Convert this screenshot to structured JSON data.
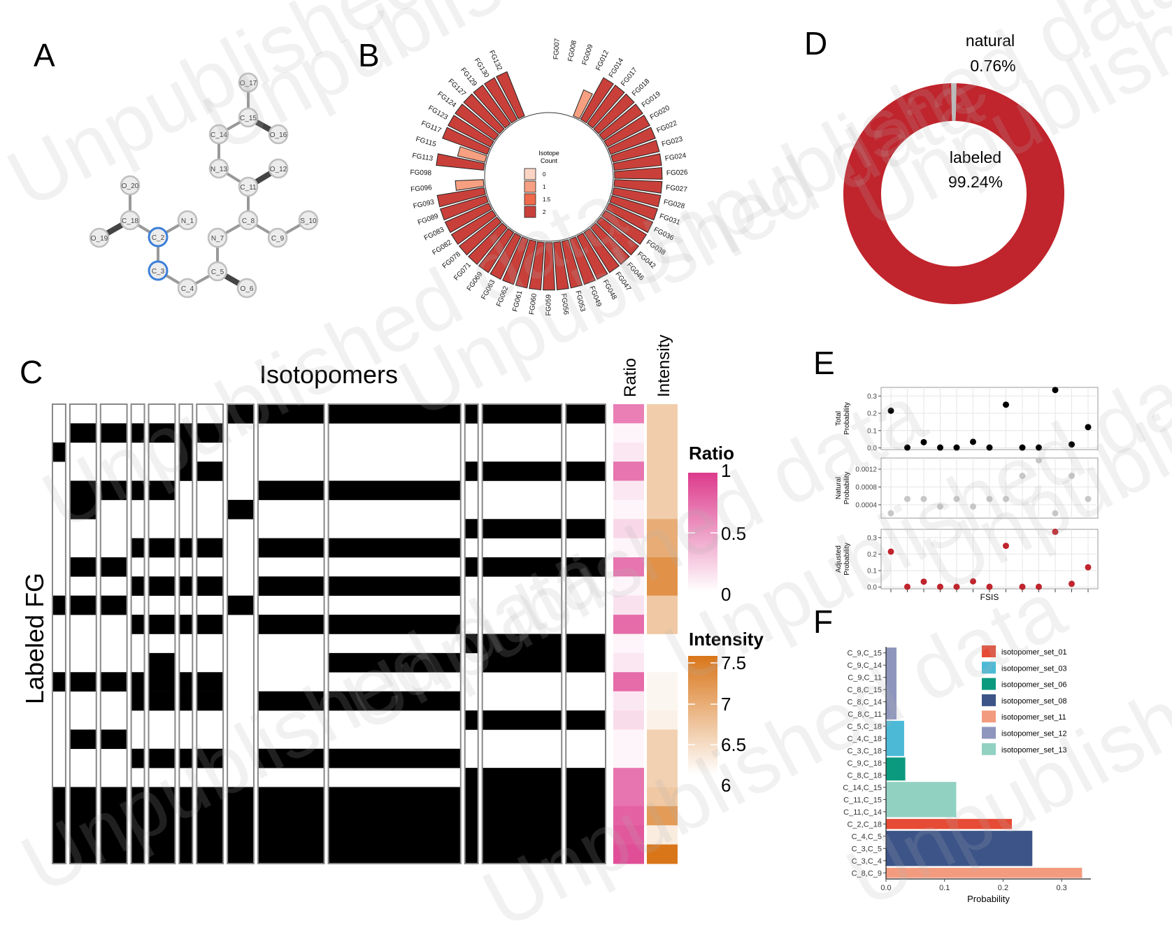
{
  "panel_labels": {
    "a": "A",
    "b": "B",
    "c": "C",
    "d": "D",
    "e": "E",
    "f": "F"
  },
  "watermark": "Unpublished data",
  "colors": {
    "heat_red": "#c9403a",
    "donut_red": "#c0242c",
    "donut_grey": "#bdbdbd",
    "ratio_pink": "#dd3a8c",
    "intensity_orange": "#d9761a",
    "node_blue": "#3b7fd9",
    "adjusted_red": "#c0242c",
    "natural_grey": "#c7c7c7"
  },
  "chart_data": [
    {
      "panel": "A",
      "type": "molecule-graph",
      "nodes": [
        "O_17",
        "C_15",
        "O_16",
        "C_14",
        "N_13",
        "C_11",
        "O_12",
        "O_20",
        "N_1",
        "C_18",
        "C_8",
        "S_10",
        "O_19",
        "C_2",
        "N_7",
        "C_9",
        "C_3",
        "C_5",
        "C_4",
        "O_6"
      ],
      "highlighted": [
        "C_2",
        "C_3"
      ],
      "edges": [
        [
          "O_17",
          "C_15"
        ],
        [
          "C_15",
          "O_16"
        ],
        [
          "C_15",
          "C_14"
        ],
        [
          "C_14",
          "N_13"
        ],
        [
          "N_13",
          "C_11"
        ],
        [
          "C_11",
          "O_12"
        ],
        [
          "C_11",
          "C_8"
        ],
        [
          "C_8",
          "C_9"
        ],
        [
          "C_9",
          "S_10"
        ],
        [
          "C_8",
          "N_7"
        ],
        [
          "N_7",
          "C_5"
        ],
        [
          "C_5",
          "O_6"
        ],
        [
          "C_5",
          "C_4"
        ],
        [
          "C_4",
          "C_3"
        ],
        [
          "C_3",
          "C_2"
        ],
        [
          "C_2",
          "N_1"
        ],
        [
          "C_2",
          "C_18"
        ],
        [
          "C_18",
          "O_20"
        ],
        [
          "C_18",
          "O_19"
        ]
      ]
    },
    {
      "panel": "B",
      "type": "circular-bar",
      "legend_title": "Isotope Count",
      "legend_labels": [
        "0",
        "1",
        "1.5",
        "2"
      ],
      "legend_values": [
        0,
        1,
        1.5,
        2
      ],
      "categories": [
        "FG007",
        "FG008",
        "FG009",
        "FG012",
        "FG014",
        "FG017",
        "FG018",
        "FG019",
        "FG020",
        "FG022",
        "FG023",
        "FG024",
        "FG026",
        "FG027",
        "FG028",
        "FG031",
        "FG036",
        "FG038",
        "FG042",
        "FG046",
        "FG047",
        "FG048",
        "FG049",
        "FG053",
        "FG056",
        "FG059",
        "FG060",
        "FG061",
        "FG062",
        "FG063",
        "FG069",
        "FG071",
        "FG078",
        "FG082",
        "FG083",
        "FG089",
        "FG093",
        "FG096",
        "FG098",
        "FG113",
        "FG115",
        "FG117",
        "FG123",
        "FG124",
        "FG127",
        "FG129",
        "FG130",
        "FG132"
      ],
      "values": [
        0,
        0,
        0,
        1,
        2,
        2,
        2,
        2,
        2,
        2,
        2,
        2,
        2,
        2,
        2,
        2,
        2,
        2,
        2,
        2,
        2,
        2,
        2,
        2,
        2,
        2,
        2,
        2,
        2,
        2,
        2,
        2,
        2,
        2,
        2,
        2,
        2,
        1,
        0,
        2,
        1,
        2,
        2,
        2,
        2,
        2,
        2,
        2
      ]
    },
    {
      "panel": "C",
      "type": "heatmap",
      "title": "Isotopomers",
      "ylabel": "Labeled FG",
      "annotation_columns": [
        "Ratio",
        "Intensity"
      ],
      "legend_ratio": {
        "title": "Ratio",
        "ticks": [
          "1",
          "0.5",
          "0"
        ],
        "range": [
          0,
          1
        ]
      },
      "legend_intensity": {
        "title": "Intensity",
        "ticks": [
          "7.5",
          "7",
          "6.5",
          "6"
        ],
        "range": [
          6,
          7.5
        ]
      },
      "column_groups": [
        1,
        2,
        2,
        1,
        2,
        1,
        2,
        2,
        5,
        10,
        1,
        6,
        3
      ],
      "rows": [
        [
          0,
          0,
          0,
          0,
          0,
          0,
          0,
          1,
          1,
          1,
          1,
          1,
          1
        ],
        [
          0,
          1,
          1,
          1,
          1,
          1,
          1,
          0,
          0,
          0,
          0,
          0,
          0
        ],
        [
          1,
          0,
          0,
          0,
          0,
          1,
          0,
          0,
          0,
          0,
          0,
          0,
          0
        ],
        [
          0,
          0,
          0,
          0,
          0,
          1,
          1,
          0,
          0,
          0,
          1,
          1,
          1
        ],
        [
          0,
          1,
          1,
          1,
          1,
          0,
          0,
          0,
          1,
          1,
          0,
          0,
          0
        ],
        [
          0,
          1,
          0,
          0,
          0,
          0,
          0,
          1,
          0,
          0,
          0,
          0,
          0
        ],
        [
          0,
          0,
          0,
          0,
          0,
          0,
          0,
          0,
          0,
          0,
          1,
          1,
          1
        ],
        [
          0,
          0,
          0,
          1,
          1,
          1,
          1,
          0,
          1,
          1,
          0,
          0,
          0
        ],
        [
          0,
          1,
          1,
          0,
          0,
          0,
          0,
          0,
          0,
          0,
          1,
          1,
          1
        ],
        [
          0,
          0,
          0,
          1,
          1,
          1,
          1,
          0,
          1,
          1,
          0,
          0,
          0
        ],
        [
          1,
          1,
          1,
          0,
          0,
          0,
          0,
          1,
          0,
          0,
          0,
          0,
          0
        ],
        [
          0,
          0,
          0,
          1,
          1,
          1,
          1,
          0,
          1,
          1,
          0,
          0,
          0
        ],
        [
          0,
          0,
          0,
          0,
          0,
          0,
          0,
          0,
          0,
          0,
          1,
          1,
          1
        ],
        [
          0,
          0,
          0,
          0,
          1,
          0,
          0,
          0,
          0,
          1,
          0,
          1,
          1
        ],
        [
          1,
          1,
          1,
          1,
          1,
          1,
          1,
          0,
          0,
          0,
          0,
          0,
          0
        ],
        [
          0,
          0,
          0,
          1,
          1,
          1,
          1,
          0,
          1,
          1,
          0,
          0,
          0
        ],
        [
          0,
          0,
          0,
          0,
          0,
          0,
          0,
          0,
          0,
          0,
          1,
          1,
          1
        ],
        [
          0,
          1,
          1,
          0,
          0,
          0,
          0,
          0,
          0,
          0,
          0,
          0,
          0
        ],
        [
          0,
          0,
          0,
          1,
          1,
          1,
          1,
          0,
          1,
          1,
          0,
          0,
          0
        ],
        [
          0,
          0,
          0,
          0,
          0,
          0,
          0,
          0,
          0,
          0,
          1,
          1,
          1
        ],
        [
          1,
          1,
          1,
          1,
          1,
          1,
          1,
          1,
          1,
          1,
          1,
          1,
          1
        ]
      ],
      "row_heights": [
        1,
        1,
        1,
        1,
        1,
        1,
        1,
        1,
        1,
        1,
        1,
        1,
        1,
        1,
        1,
        1,
        1,
        1,
        1,
        1,
        4
      ],
      "ratio": [
        0.65,
        0.05,
        0.12,
        0.7,
        0.12,
        0.05,
        0.2,
        0.05,
        0.7,
        0.05,
        0.15,
        0.75,
        0.05,
        0.12,
        0.75,
        0.12,
        0.18,
        0.05,
        0.05,
        0.7,
        0.85
      ],
      "intensity": [
        6.55,
        6.55,
        6.55,
        6.55,
        6.55,
        6.55,
        6.9,
        6.9,
        7.2,
        7.2,
        6.6,
        6.6,
        null,
        null,
        6.1,
        6.1,
        6.15,
        6.5,
        6.5,
        6.5,
        7.1
      ]
    },
    {
      "panel": "D",
      "type": "pie",
      "donut": true,
      "categories": [
        "labeled",
        "natural"
      ],
      "values": [
        99.24,
        0.76
      ],
      "labels": {
        "labeled": "labeled",
        "labeled_pct": "99.24%",
        "natural": "natural",
        "natural_pct": "0.76%"
      }
    },
    {
      "panel": "E",
      "type": "scatter",
      "xlabel": "FSIS",
      "x": [
        1,
        2,
        3,
        4,
        5,
        6,
        7,
        8,
        9,
        10,
        11,
        12,
        13
      ],
      "series": [
        {
          "name": "Total Probability",
          "values": [
            0.215,
            0.002,
            0.033,
            0.002,
            0.002,
            0.035,
            0.002,
            0.25,
            0.002,
            0.002,
            0.335,
            0.02,
            0.12
          ],
          "yticks": [
            "0.0",
            "0.1",
            "0.2",
            "0.3"
          ],
          "ylim": [
            -0.01,
            0.35
          ]
        },
        {
          "name": "Natural Probability",
          "values": [
            0.00021,
            0.00053,
            0.00053,
            0.00036,
            0.00053,
            0.00036,
            0.00053,
            0.00053,
            0.00105,
            0.0014,
            0.00021,
            0.00105,
            0.00053
          ],
          "yticks": [
            "0.0004",
            "0.0008",
            "0.0012"
          ],
          "ylim": [
            0.0001,
            0.00145
          ]
        },
        {
          "name": "Adjusted Probability",
          "values": [
            0.215,
            0.002,
            0.033,
            0.002,
            0.002,
            0.035,
            0.002,
            0.25,
            0.002,
            0.002,
            0.335,
            0.02,
            0.12
          ],
          "yticks": [
            "0.0",
            "0.1",
            "0.2",
            "0.3"
          ],
          "ylim": [
            -0.01,
            0.35
          ]
        }
      ],
      "ylabels": [
        [
          "Total",
          "Probability"
        ],
        [
          "Natural",
          "Probability"
        ],
        [
          "Adjusted",
          "Probability"
        ]
      ]
    },
    {
      "panel": "F",
      "type": "bar",
      "orientation": "horizontal",
      "xlabel": "Probability",
      "xticks": [
        "0.0",
        "0.1",
        "0.2",
        "0.3"
      ],
      "xlim": [
        0,
        0.35
      ],
      "categories": [
        "C_9,C_15",
        "C_9,C_14",
        "C_9,C_11",
        "C_8,C_15",
        "C_8,C_14",
        "C_8,C_11",
        "C_5,C_18",
        "C_4,C_18",
        "C_3,C_18",
        "C_9,C_18",
        "C_8,C_18",
        "C_14,C_15",
        "C_11,C_15",
        "C_11,C_14",
        "C_2,C_18",
        "C_4,C_5",
        "C_3,C_5",
        "C_3,C_4",
        "C_8,C_9"
      ],
      "groups": [
        {
          "name": "isotopomer_set_12",
          "color": "#8f96bd",
          "rows": [
            "C_9,C_15",
            "C_9,C_14",
            "C_9,C_11",
            "C_8,C_15",
            "C_8,C_14",
            "C_8,C_11"
          ],
          "value": 0.018
        },
        {
          "name": "isotopomer_set_03",
          "color": "#4cbad6",
          "rows": [
            "C_5,C_18",
            "C_4,C_18",
            "C_3,C_18"
          ],
          "value": 0.031
        },
        {
          "name": "isotopomer_set_06",
          "color": "#0c9a7f",
          "rows": [
            "C_9,C_18",
            "C_8,C_18"
          ],
          "value": 0.033
        },
        {
          "name": "isotopomer_set_13",
          "color": "#91d1c2",
          "rows": [
            "C_14,C_15",
            "C_11,C_15",
            "C_11,C_14"
          ],
          "value": 0.12
        },
        {
          "name": "isotopomer_set_01",
          "color": "#e64b35",
          "rows": [
            "C_2,C_18"
          ],
          "value": 0.215
        },
        {
          "name": "isotopomer_set_08",
          "color": "#3c5488",
          "rows": [
            "C_4,C_5",
            "C_3,C_5",
            "C_3,C_4"
          ],
          "value": 0.25
        },
        {
          "name": "isotopomer_set_11",
          "color": "#f39b7f",
          "rows": [
            "C_8,C_9"
          ],
          "value": 0.335
        }
      ],
      "legend_order": [
        "isotopomer_set_01",
        "isotopomer_set_03",
        "isotopomer_set_06",
        "isotopomer_set_08",
        "isotopomer_set_11",
        "isotopomer_set_12",
        "isotopomer_set_13"
      ]
    }
  ]
}
